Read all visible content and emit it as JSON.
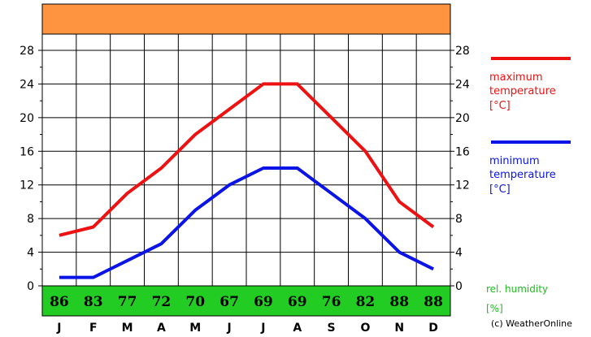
{
  "chart_data": {
    "type": "line",
    "categories": [
      "J",
      "F",
      "M",
      "A",
      "M",
      "J",
      "J",
      "A",
      "S",
      "O",
      "N",
      "D"
    ],
    "series": [
      {
        "name": "maximum temperature [°C]",
        "color": "#ee1111",
        "values": [
          6,
          7,
          11,
          14,
          18,
          21,
          24,
          24,
          20,
          16,
          10,
          7
        ]
      },
      {
        "name": "minimum temperature [°C]",
        "color": "#0b14e6",
        "values": [
          1,
          1,
          3,
          5,
          9,
          12,
          14,
          14,
          11,
          8,
          4,
          2
        ]
      }
    ],
    "humidity": {
      "name": "rel. humidity [%]",
      "color": "#22cc22",
      "values": [
        86,
        83,
        77,
        72,
        70,
        67,
        69,
        69,
        76,
        82,
        88,
        88
      ]
    },
    "ylim": [
      0,
      28
    ],
    "y_ticks": [
      0,
      4,
      8,
      12,
      16,
      20,
      24,
      28
    ],
    "header_color": "#ff9440",
    "grid": true,
    "legend_placement": "right"
  },
  "legend": {
    "max_line1": "maximum",
    "max_line2": "temperature",
    "max_line3": "[°C]",
    "min_line1": "minimum",
    "min_line2": "temperature",
    "min_line3": "[°C]",
    "hum_line1": "rel. humidity",
    "hum_line2": "[%]"
  },
  "credit": "(c) WeatherOnline"
}
